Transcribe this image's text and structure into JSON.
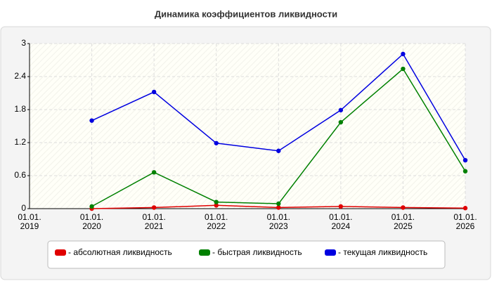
{
  "chart_data": {
    "type": "line",
    "title": "Динамика коэффициентов ликвидности",
    "categories": [
      "01.01.\n2019",
      "01.01.\n2020",
      "01.01.\n2021",
      "01.01.\n2022",
      "01.01.\n2023",
      "01.01.\n2024",
      "01.01.\n2025",
      "01.01.\n2026"
    ],
    "series": [
      {
        "name": "- абсолютная ликвидность",
        "color": "#e00000",
        "values": [
          null,
          0.0,
          0.02,
          0.06,
          0.02,
          0.04,
          0.02,
          0.01
        ]
      },
      {
        "name": "- быстрая ликвидность",
        "color": "#008000",
        "values": [
          null,
          0.04,
          0.66,
          0.12,
          0.09,
          1.57,
          2.54,
          0.68
        ]
      },
      {
        "name": "- текущая ликвидность",
        "color": "#0000e0",
        "values": [
          null,
          1.6,
          2.12,
          1.19,
          1.05,
          1.79,
          2.81,
          0.88
        ]
      }
    ],
    "ylim": [
      0,
      3
    ],
    "yticks": [
      0,
      0.6,
      1.2,
      1.8,
      2.4,
      3
    ],
    "grid": true,
    "legend": "bottom"
  }
}
